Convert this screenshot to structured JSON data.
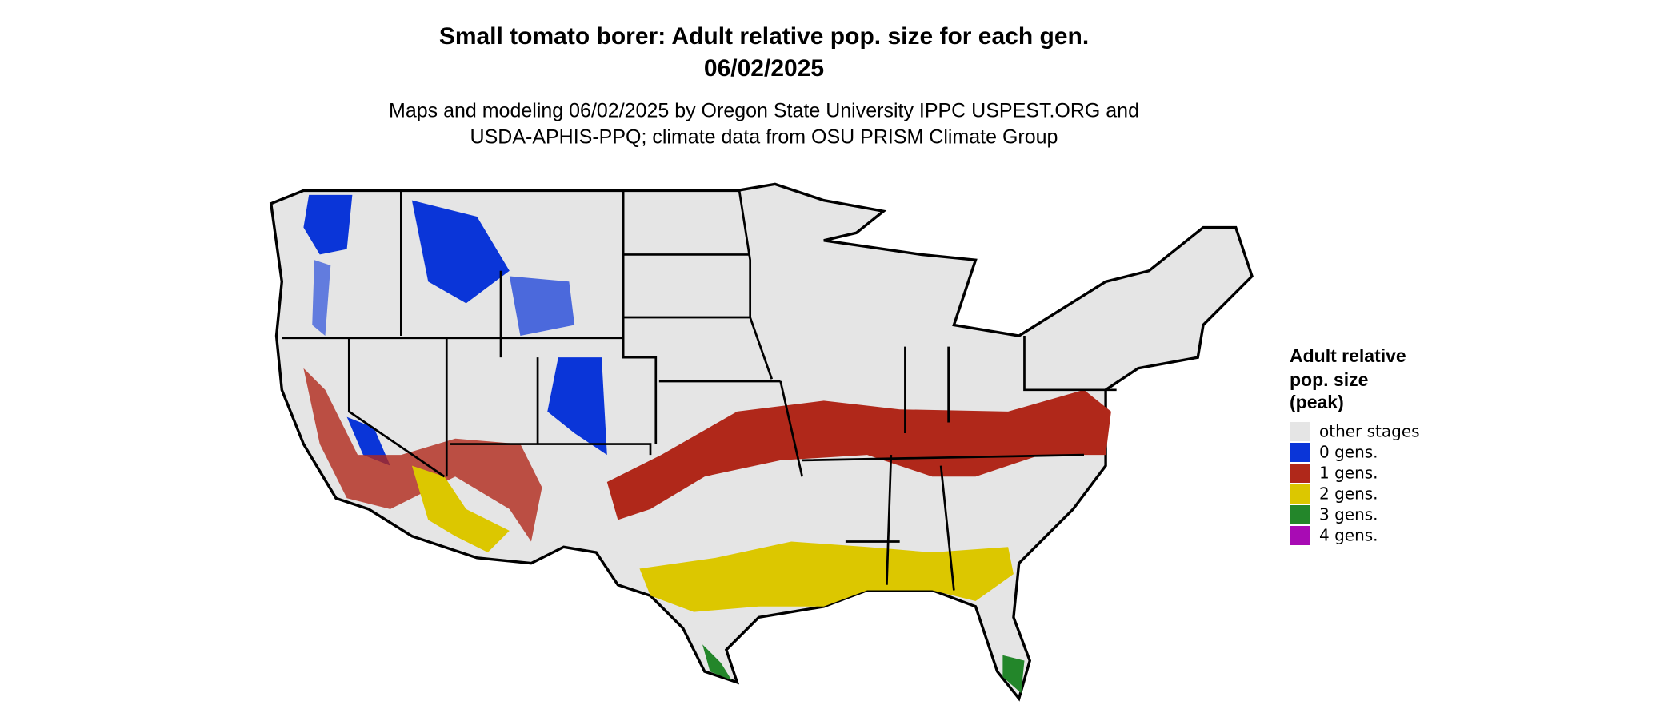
{
  "header": {
    "title": "Small tomato borer: Adult relative pop. size for each gen.",
    "date": "06/02/2025",
    "subtitle": [
      "Maps and modeling 06/02/2025 by Oregon State University IPPC USPEST.ORG and",
      "USDA-APHIS-PPQ; climate data from OSU PRISM Climate Group"
    ]
  },
  "legend": {
    "title": [
      "Adult relative",
      "pop. size",
      "(peak)"
    ],
    "items": [
      {
        "label": "other stages",
        "color": "#e5e5e5"
      },
      {
        "label": "0 gens.",
        "color": "#0a35d8"
      },
      {
        "label": "1 gens.",
        "color": "#b0281a"
      },
      {
        "label": "2 gens.",
        "color": "#dcc700"
      },
      {
        "label": "3 gens.",
        "color": "#23862a"
      },
      {
        "label": "4 gens.",
        "color": "#a80bb4"
      }
    ]
  }
}
